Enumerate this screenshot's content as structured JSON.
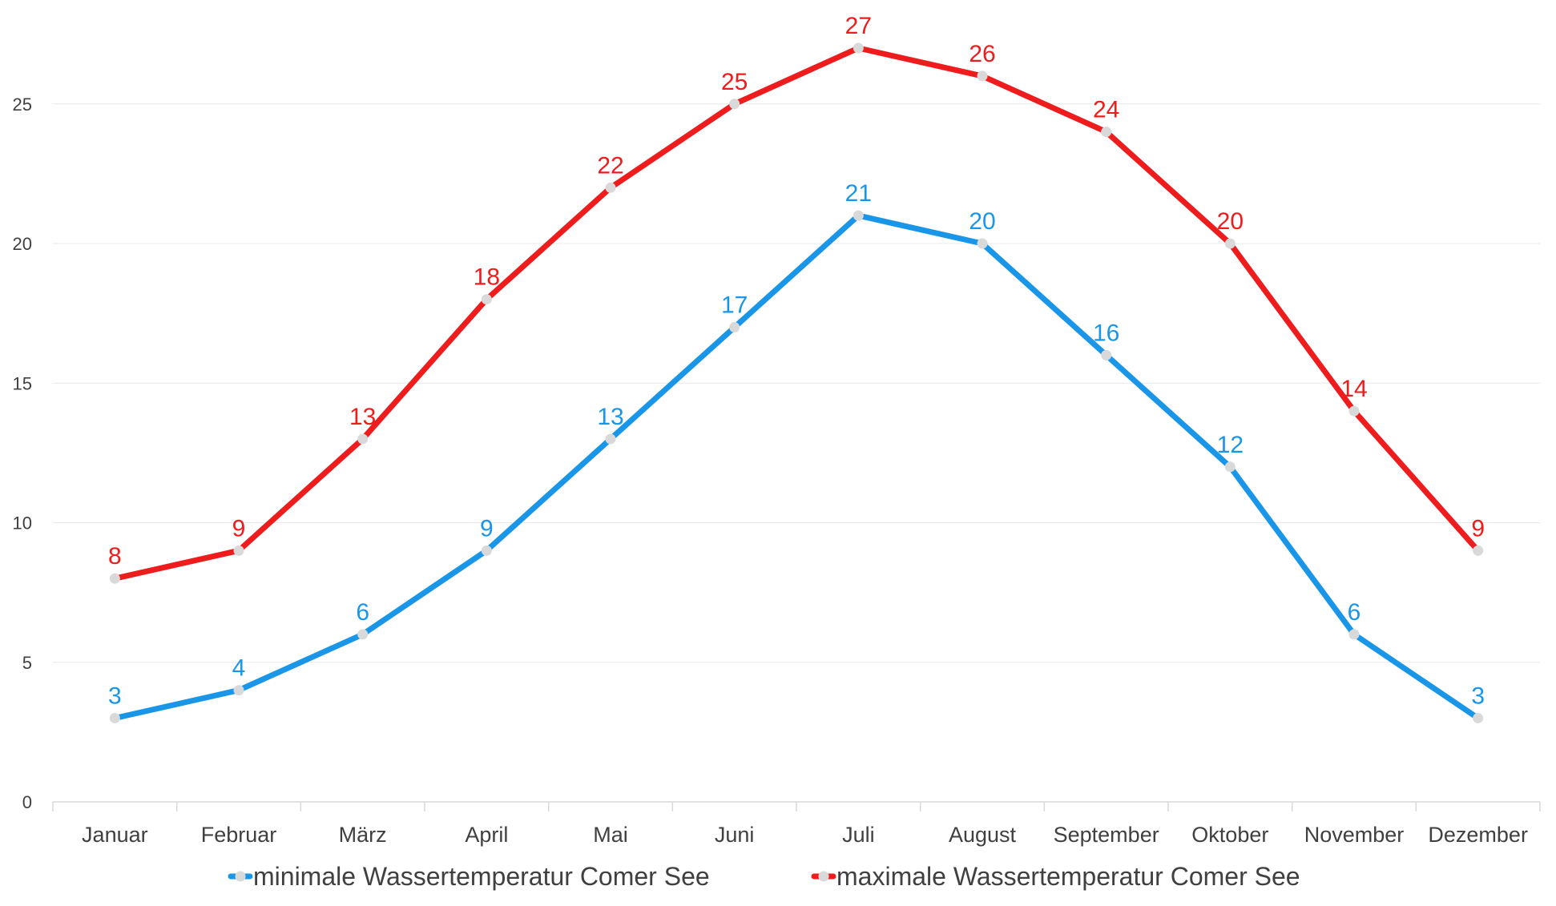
{
  "chart_data": {
    "type": "line",
    "categories": [
      "Januar",
      "Februar",
      "März",
      "April",
      "Mai",
      "Juni",
      "Juli",
      "August",
      "September",
      "Oktober",
      "November",
      "Dezember"
    ],
    "series": [
      {
        "name": "minimale Wassertemperatur Comer See",
        "color": "#1a96e8",
        "values": [
          3,
          4,
          6,
          9,
          13,
          17,
          21,
          20,
          16,
          12,
          6,
          3
        ]
      },
      {
        "name": "maximale Wassertemperatur Comer See",
        "color": "#ee1c1c",
        "values": [
          8,
          9,
          13,
          18,
          22,
          25,
          27,
          26,
          24,
          20,
          14,
          9
        ]
      }
    ],
    "y_ticks": [
      0,
      5,
      10,
      15,
      20,
      25
    ],
    "ylim": [
      0,
      28
    ],
    "grid": "horizontal",
    "legend": "bottom",
    "title": "",
    "xlabel": "",
    "ylabel": "",
    "marker_color": "#d9d9d9",
    "axis_color": "#d9d9d9",
    "grid_color": "#e8e8e8"
  }
}
